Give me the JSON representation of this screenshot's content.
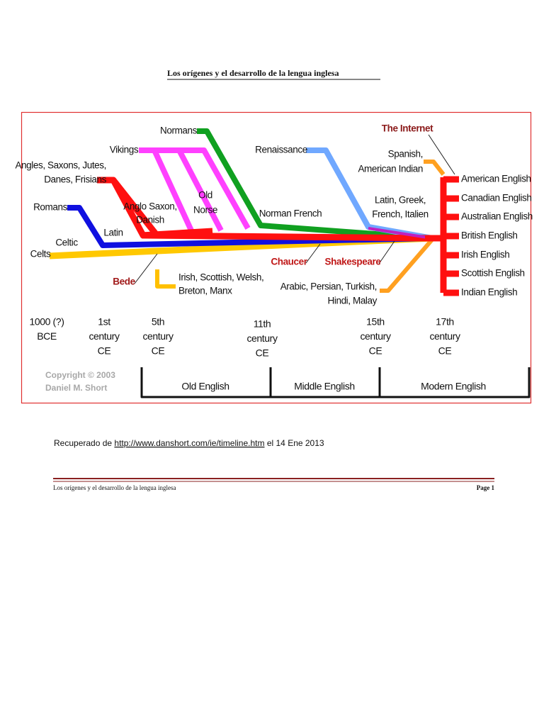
{
  "header": {
    "title": "Los orígenes y el desarrollo de la lengua inglesa"
  },
  "diagram": {
    "labels": [
      [
        "Normans"
      ],
      [
        "Vikings"
      ],
      [
        "Angles, Saxons, Jutes,",
        "Danes, Frisians"
      ],
      [
        "Romans"
      ],
      [
        "Latin"
      ],
      [
        "Celtic"
      ],
      [
        "Celts"
      ],
      [
        "Anglo Saxon,",
        "Danish"
      ],
      [
        "Old",
        "Norse"
      ],
      [
        "Renaissance"
      ],
      [
        "Norman French"
      ],
      [
        "The Internet"
      ],
      [
        "Spanish,",
        "American Indian"
      ],
      [
        "Latin, Greek,",
        "French, Italien"
      ],
      [
        "Chaucer"
      ],
      [
        "Shakespeare"
      ],
      [
        "Bede"
      ],
      [
        "Irish, Scottish, Welsh,",
        "Breton, Manx"
      ],
      [
        "Arabic, Persian, Turkish,",
        "Hindi, Malay"
      ],
      [
        "American English"
      ],
      [
        "Canadian English"
      ],
      [
        "Australian English"
      ],
      [
        "British English"
      ],
      [
        "Irish English"
      ],
      [
        "Scottish English"
      ],
      [
        "Indian English"
      ]
    ],
    "centuries": [
      [
        "1000 (?)",
        "BCE"
      ],
      [
        "1st",
        "century",
        "CE"
      ],
      [
        "5th",
        "century",
        "CE"
      ],
      [
        "11th",
        "century",
        "CE"
      ],
      [
        "15th",
        "century",
        "CE"
      ],
      [
        "17th",
        "century",
        "CE"
      ]
    ],
    "periods": [
      "Old English",
      "Middle English",
      "Modern English"
    ],
    "copyright": [
      "Copyright © 2003",
      "Daniel M. Short"
    ]
  },
  "source": {
    "prefix": "Recuperado de ",
    "url": "http://www.danshort.com/ie/timeline.htm",
    "suffix": " el 14 Ene 2013"
  },
  "footer": {
    "title": "Los orígenes y el desarrollo de la lengua inglesa",
    "page": "Page 1"
  }
}
